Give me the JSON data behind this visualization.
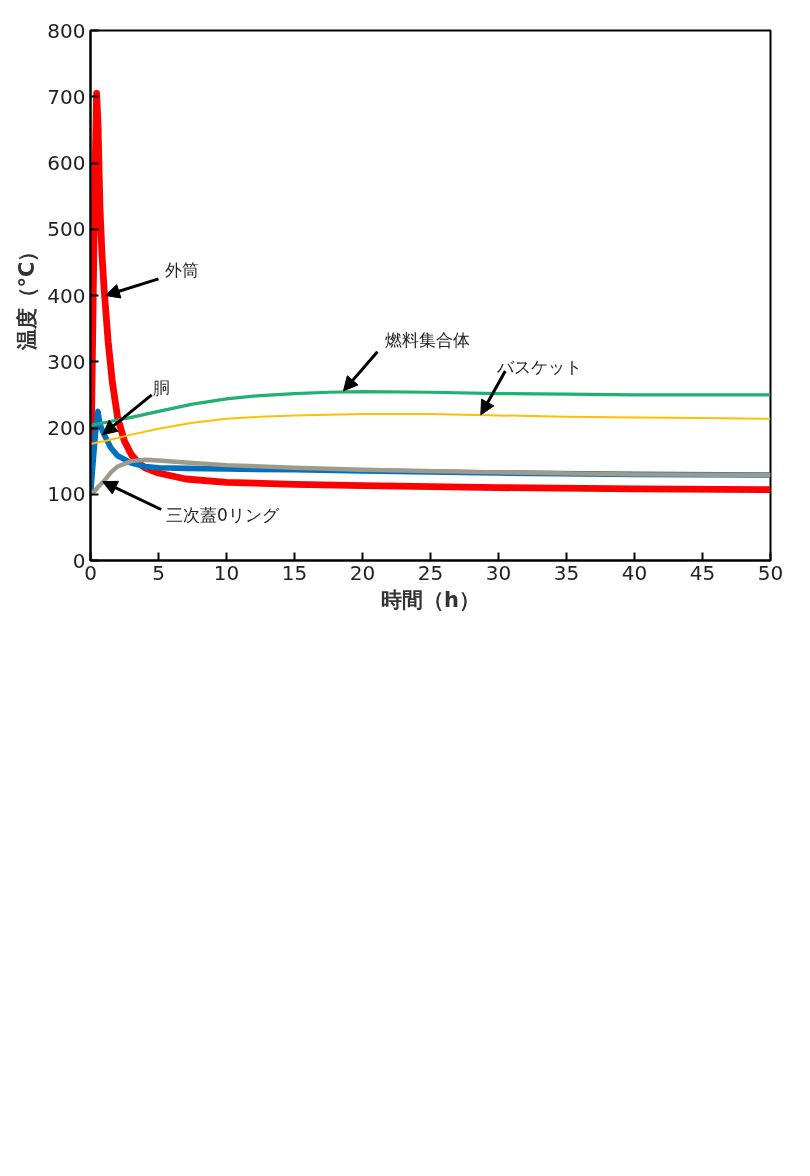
{
  "chart_data": {
    "type": "line",
    "xlabel": "時間（h）",
    "ylabel": "温度（°C）",
    "xlim": [
      0,
      50
    ],
    "ylim": [
      0,
      800
    ],
    "xticks": [
      0,
      5,
      10,
      15,
      20,
      25,
      30,
      35,
      40,
      45,
      50
    ],
    "yticks": [
      0,
      100,
      200,
      300,
      400,
      500,
      600,
      700,
      800
    ],
    "grid": false,
    "series": [
      {
        "color": "#ff0000",
        "x": [
          0,
          0.1,
          0.3,
          0.45,
          0.55,
          0.7,
          0.85,
          1.0,
          1.3,
          1.6,
          2.0,
          2.5,
          3,
          3.5,
          4,
          5,
          7,
          10,
          15,
          20,
          30,
          40,
          50
        ],
        "values": [
          100,
          250,
          550,
          705,
          660,
          530,
          460,
          410,
          330,
          270,
          215,
          180,
          160,
          148,
          140,
          132,
          123,
          118,
          115,
          113,
          110,
          108,
          107
        ]
      },
      {
        "color": "#0070c0",
        "x": [
          0,
          0.2,
          0.4,
          0.55,
          0.7,
          1.0,
          1.5,
          2,
          3,
          4,
          5,
          7,
          10,
          15,
          20,
          30,
          40,
          50
        ],
        "values": [
          100,
          150,
          200,
          225,
          205,
          190,
          170,
          158,
          147,
          142,
          140,
          139,
          138,
          137,
          135,
          132,
          130,
          129
        ]
      },
      {
        "color": "#a09a88",
        "x": [
          0,
          0.3,
          0.6,
          1.0,
          1.5,
          2,
          3,
          4,
          5,
          7,
          10,
          15,
          20,
          30,
          40,
          50
        ],
        "values": [
          100,
          105,
          112,
          120,
          133,
          142,
          150,
          152,
          151,
          148,
          144,
          140,
          137,
          133,
          130,
          129
        ]
      },
      {
        "color": "#20b070",
        "x": [
          0,
          0.5,
          1,
          2,
          3,
          5,
          7.5,
          10,
          12.5,
          15,
          17.5,
          20,
          25,
          30,
          35,
          40,
          45,
          50
        ],
        "values": [
          204,
          206,
          208,
          212,
          216,
          225,
          236,
          244,
          249,
          252,
          254,
          255,
          254,
          252,
          251,
          250,
          250,
          250
        ]
      },
      {
        "color": "#ffc000",
        "x": [
          0,
          0.5,
          1,
          2,
          3,
          5,
          7.5,
          10,
          12.5,
          15,
          20,
          25,
          30,
          35,
          40,
          45,
          50
        ],
        "values": [
          176,
          178,
          180,
          185,
          190,
          199,
          208,
          214,
          217,
          219,
          221,
          221,
          219,
          217,
          216,
          215,
          214
        ]
      }
    ],
    "annotations": [
      {
        "text": "外筒",
        "x": 1.1,
        "y": 400
      },
      {
        "text": "胴",
        "x": 0.9,
        "y": 190
      },
      {
        "text": "三次蓋0リング",
        "x": 0.9,
        "y": 119
      },
      {
        "text": "燃料集合体",
        "x": 18.6,
        "y": 256
      },
      {
        "text": "バスケット",
        "x": 28.7,
        "y": 220
      }
    ]
  }
}
